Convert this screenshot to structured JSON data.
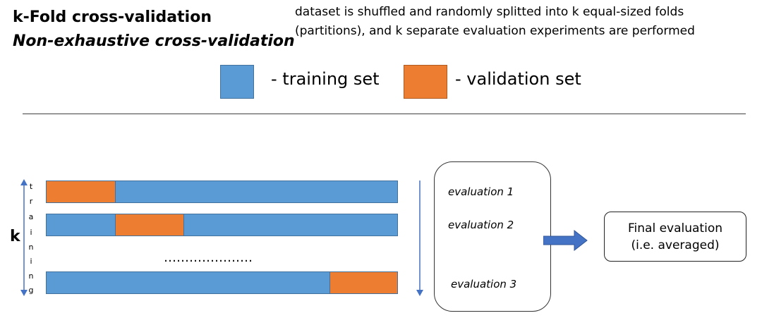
{
  "header": {
    "title": "k-Fold cross-validation",
    "subtitle": "Non-exhaustive cross-validation",
    "description_line1": "dataset is shuffled and randomly splitted into k equal-sized folds",
    "description_line2": "(partitions), and k separate evaluation experiments are performed"
  },
  "legend": {
    "training_label": "- training set",
    "validation_label": "- validation set",
    "training_color": "#5b9bd5",
    "validation_color": "#ed7d31"
  },
  "diagram": {
    "k_label": "k",
    "vertical_label": [
      "t",
      "r",
      "a",
      "i",
      "n",
      "i",
      "n",
      "g"
    ],
    "dots": "…………………",
    "evaluations": [
      "evaluation 1",
      "evaluation 2",
      "evaluation 3"
    ],
    "final_line1": "Final evaluation",
    "final_line2": "(i.e. averaged)"
  }
}
